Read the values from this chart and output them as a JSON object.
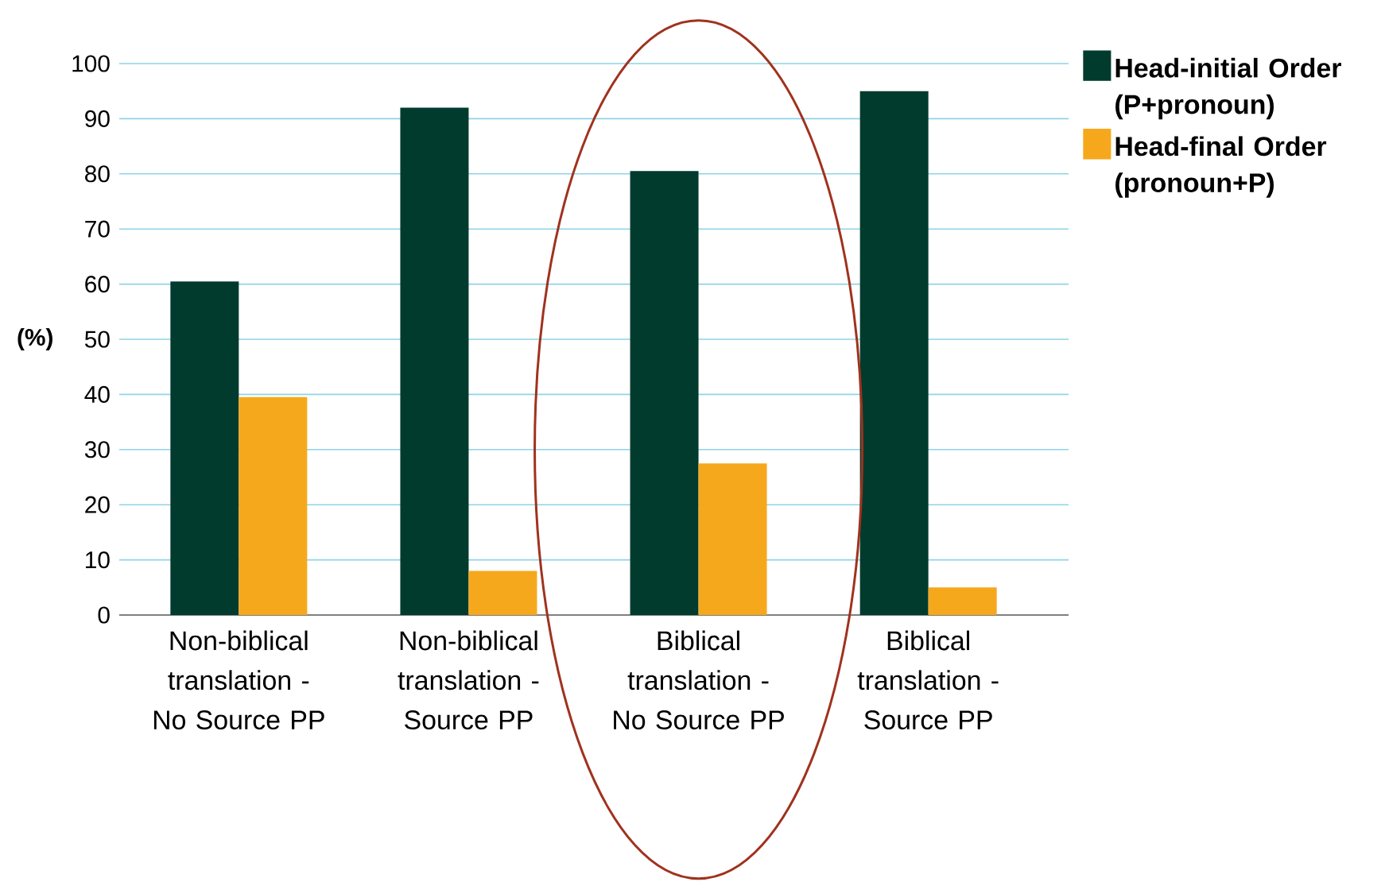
{
  "chart_data": {
    "type": "bar",
    "ylabel": "(%)",
    "categories": [
      "Non-biblical translation - No Source PP",
      "Non-biblical translation - Source PP",
      "Biblical translation - No Source PP",
      "Biblical translation - Source PP"
    ],
    "series": [
      {
        "name": "Head-initial Order (P+pronoun)",
        "color": "#003b2e",
        "values": [
          60.5,
          92,
          80.5,
          95
        ]
      },
      {
        "name": "Head-final Order (pronoun+P)",
        "color": "#f6a81c",
        "values": [
          39.5,
          8,
          27.5,
          5
        ]
      }
    ],
    "ylim": [
      0,
      100
    ],
    "yticks": [
      0,
      10,
      20,
      30,
      40,
      50,
      60,
      70,
      80,
      90,
      100
    ],
    "grid": "y",
    "legend": "top right"
  }
}
